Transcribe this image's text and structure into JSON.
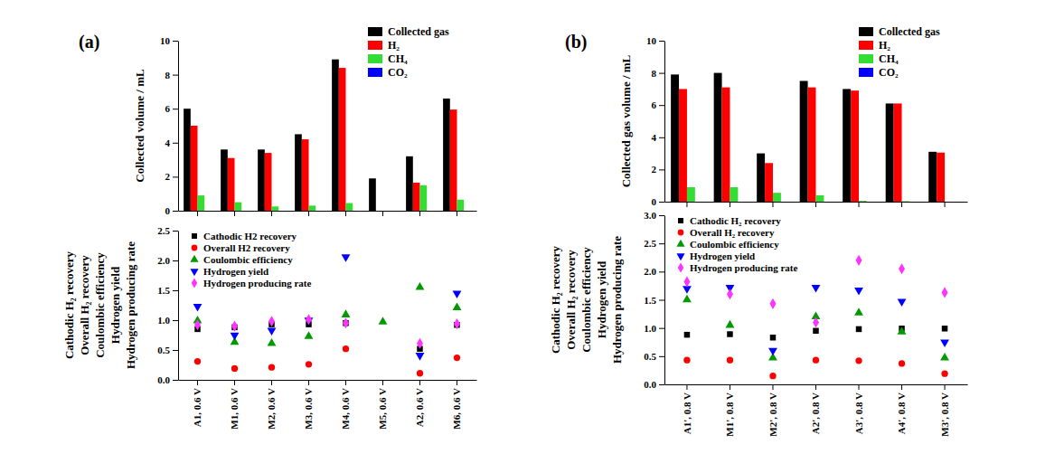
{
  "chart_data": [
    {
      "type": "bar",
      "title": "(a)",
      "ylabel": "Collected volume / mL",
      "categories": [
        null,
        null,
        null,
        null,
        null,
        null,
        null,
        null
      ],
      "series": [
        {
          "name": "Collected gas",
          "color": "#000000",
          "values": [
            6.0,
            3.6,
            3.6,
            4.5,
            8.9,
            1.9,
            3.2,
            6.6
          ]
        },
        {
          "name": "H₂",
          "color": "#ff0000",
          "values": [
            5.0,
            3.1,
            3.4,
            4.2,
            8.4,
            0,
            1.65,
            5.95
          ]
        },
        {
          "name": "CH₄",
          "color": "#33dd33",
          "values": [
            0.9,
            0.5,
            0.25,
            0.3,
            0.45,
            0,
            1.5,
            0.65
          ]
        },
        {
          "name": "CO₂",
          "color": "#0000ff",
          "values": [
            0,
            0,
            0,
            0,
            0,
            0,
            0,
            0
          ]
        }
      ],
      "ylim": [
        0,
        10
      ],
      "yticks": [
        0,
        2,
        4,
        6,
        8,
        10
      ],
      "legend": "upper right"
    },
    {
      "type": "scatter",
      "ylabel": [
        "Cathodic H₂ recovery",
        "Overall H₂ recovery",
        "Coulombic efficiency",
        "Hydrogen yield",
        "Hydrogen producing rate"
      ],
      "categories": [
        "A1, 0.6 V",
        "M1, 0.6 V",
        "M2, 0.6 V",
        "M3, 0.6 V",
        "M4, 0.6 V",
        "M5, 0.6 V",
        "A2, 0.6 V",
        "M6, 0.6 V"
      ],
      "series": [
        {
          "name": "Cathodic H2 recovery",
          "color": "#000000",
          "marker": "square",
          "values": [
            0.85,
            0.88,
            0.93,
            0.93,
            0.95,
            null,
            0.52,
            0.92
          ]
        },
        {
          "name": "Overall H2 recovery",
          "color": "#ff0000",
          "marker": "circle",
          "values": [
            0.31,
            0.19,
            0.21,
            0.26,
            0.52,
            null,
            0.11,
            0.37
          ]
        },
        {
          "name": "Coulombic efficiency",
          "color": "#009900",
          "marker": "triangle-up",
          "values": [
            0.99,
            0.63,
            0.61,
            0.73,
            1.09,
            0.97,
            1.55,
            1.21
          ]
        },
        {
          "name": "Hydrogen yield",
          "color": "#0000ff",
          "marker": "triangle-down",
          "values": [
            1.23,
            0.75,
            0.83,
            1.0,
            2.06,
            null,
            0.41,
            1.45
          ]
        },
        {
          "name": "Hydrogen producing rate",
          "color": "#ff33ff",
          "marker": "diamond",
          "values": [
            0.92,
            0.9,
            0.98,
            1.01,
            0.95,
            null,
            0.61,
            0.94
          ]
        }
      ],
      "ylim": [
        0,
        2.5
      ],
      "yticks": [
        {
          "value": 0,
          "label": "0.0"
        },
        0.5,
        {
          "value": 1,
          "label": "1.0"
        },
        1.5,
        {
          "value": 2,
          "label": "2.0"
        },
        2.5
      ],
      "legend": "upper left"
    },
    {
      "type": "bar",
      "title": "(b)",
      "ylabel": "Collected gas volume / mL",
      "categories": [
        null,
        null,
        null,
        null,
        null,
        null,
        null
      ],
      "series": [
        {
          "name": "Collected gas",
          "color": "#000000",
          "values": [
            7.9,
            8.0,
            3.0,
            7.5,
            7.0,
            6.1,
            3.1
          ]
        },
        {
          "name": "H₂",
          "color": "#ff0000",
          "values": [
            7.0,
            7.1,
            2.4,
            7.1,
            6.9,
            6.1,
            3.05
          ]
        },
        {
          "name": "CH₄",
          "color": "#33dd33",
          "values": [
            0.9,
            0.9,
            0.55,
            0.4,
            0.05,
            0.03,
            0
          ]
        },
        {
          "name": "CO₂",
          "color": "#0000ff",
          "values": [
            0,
            0,
            0,
            0,
            0,
            0,
            0
          ]
        }
      ],
      "ylim": [
        0,
        10
      ],
      "yticks": [
        0,
        2,
        4,
        6,
        8,
        10
      ],
      "legend": "upper right"
    },
    {
      "type": "scatter",
      "ylabel": [
        "Cathodic H₂ recovery",
        "Overall H₂ recovery",
        "Coulombic efficiency",
        "Hydrogen yield",
        "Hydrogen producing rate"
      ],
      "categories": [
        "A1', 0.8 V",
        "M1', 0.8 V",
        "M2', 0.8 V",
        "A2', 0.8 V",
        "A3', 0.8 V",
        "A4', 0.8 V",
        "M3', 0.8 V"
      ],
      "series": [
        {
          "name": "Cathodic H₂ recovery",
          "color": "#000000",
          "marker": "square",
          "values": [
            0.88,
            0.89,
            0.83,
            0.95,
            0.98,
            0.99,
            0.99
          ]
        },
        {
          "name": "Overall H₂ recovery",
          "color": "#ff0000",
          "marker": "circle",
          "values": [
            0.43,
            0.43,
            0.15,
            0.43,
            0.42,
            0.37,
            0.19
          ]
        },
        {
          "name": "Coulombic efficiency",
          "color": "#009900",
          "marker": "triangle-up",
          "values": [
            1.5,
            1.05,
            0.47,
            1.2,
            1.27,
            0.93,
            0.47
          ]
        },
        {
          "name": "Hydrogen yield",
          "color": "#0000ff",
          "marker": "triangle-down",
          "values": [
            1.7,
            1.72,
            0.6,
            1.72,
            1.67,
            1.47,
            0.75
          ]
        },
        {
          "name": "Hydrogen producing rate",
          "color": "#ff33ff",
          "marker": "diamond",
          "values": [
            1.82,
            1.6,
            1.43,
            1.1,
            2.2,
            2.05,
            1.63
          ]
        }
      ],
      "ylim": [
        0,
        3.0
      ],
      "yticks": [
        {
          "value": 0,
          "label": "0.0"
        },
        0.5,
        {
          "value": 1,
          "label": "1.0"
        },
        1.5,
        {
          "value": 2,
          "label": "2.0"
        },
        2.5,
        {
          "value": 3,
          "label": "3.0"
        }
      ],
      "legend": "upper left"
    }
  ]
}
